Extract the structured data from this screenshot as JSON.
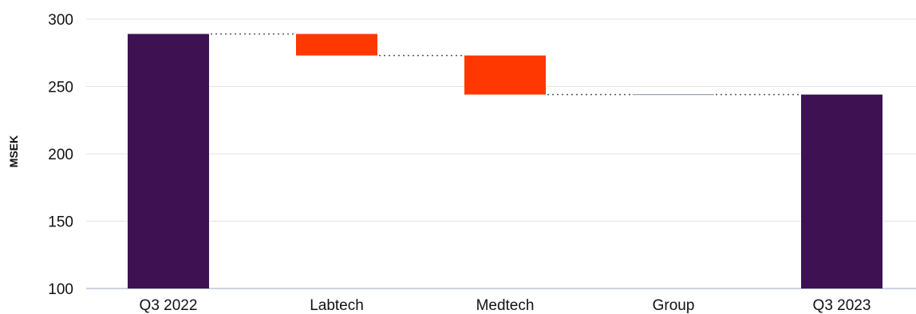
{
  "chart_data": {
    "type": "bar",
    "subtype": "waterfall",
    "ylabel": "MSEK",
    "ylim": [
      100,
      300
    ],
    "yticks": [
      "100",
      "150",
      "200",
      "250",
      "300"
    ],
    "grid": true,
    "categories": [
      "Q3 2022",
      "Labtech",
      "Medtech",
      "Group",
      "Q3 2023"
    ],
    "bars": [
      {
        "category": "Q3 2022",
        "kind": "total",
        "start": 100,
        "end": 289
      },
      {
        "category": "Labtech",
        "kind": "decrease",
        "start": 289,
        "end": 273
      },
      {
        "category": "Medtech",
        "kind": "decrease",
        "start": 273,
        "end": 244
      },
      {
        "category": "Group",
        "kind": "change",
        "start": 244,
        "end": 244
      },
      {
        "category": "Q3 2023",
        "kind": "total",
        "start": 100,
        "end": 244
      }
    ],
    "colors": {
      "total": "#3d1152",
      "decrease": "#ff3700",
      "change": "#9aa0b4",
      "grid": "#dfe3ea",
      "axis": "#b9c4d8",
      "connector": "#555555"
    }
  }
}
